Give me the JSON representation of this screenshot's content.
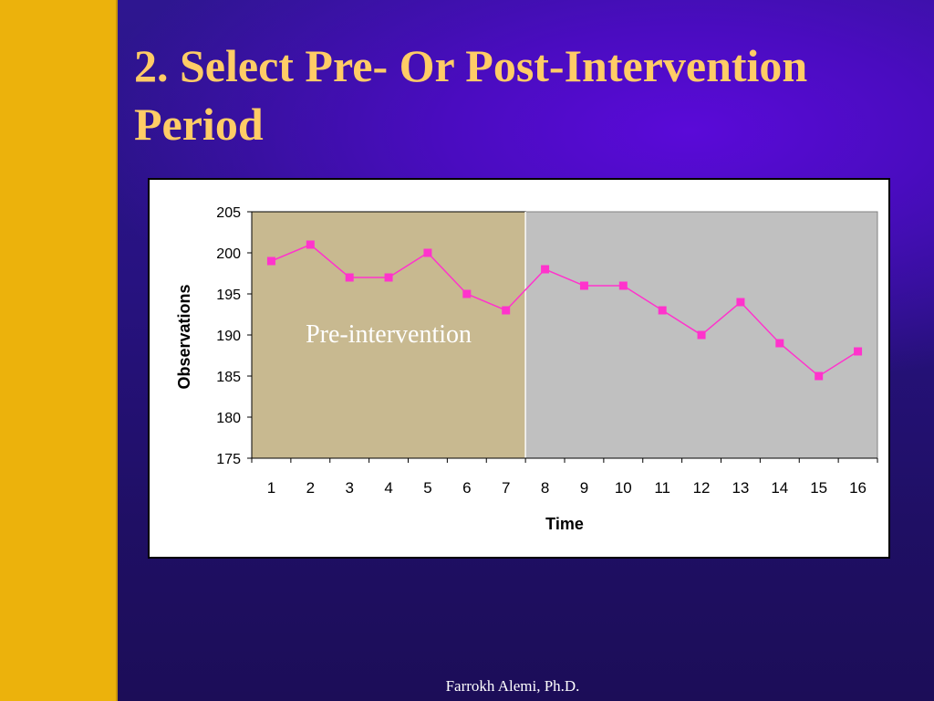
{
  "slide": {
    "title_line1": "2. Select Pre- Or Post-Intervention",
    "title_line2": "Period",
    "footer": "Farrokh Alemi, Ph.D."
  },
  "colors": {
    "background": "#201060",
    "left_bar": "#ecb20c",
    "title": "#ffcc66",
    "pre_region": "#c8b990",
    "post_region": "#c0c0c0",
    "series": "#ff33cc"
  },
  "chart_data": {
    "type": "line",
    "title": "",
    "xlabel": "Time",
    "ylabel": "Observations",
    "ylim": [
      175,
      205
    ],
    "yticks": [
      175,
      180,
      185,
      190,
      195,
      200,
      205
    ],
    "categories": [
      "1",
      "2",
      "3",
      "4",
      "5",
      "6",
      "7",
      "8",
      "9",
      "10",
      "11",
      "12",
      "13",
      "14",
      "15",
      "16"
    ],
    "series": [
      {
        "values": [
          199,
          201,
          197,
          197,
          200,
          195,
          193,
          198,
          196,
          196,
          193,
          190,
          194,
          189,
          185,
          188
        ]
      }
    ],
    "regions": [
      {
        "label": "Pre-intervention",
        "from_category": 1,
        "to_category": 7
      },
      {
        "label": "",
        "from_category": 8,
        "to_category": 16
      }
    ],
    "grid": false,
    "legend": "none"
  }
}
